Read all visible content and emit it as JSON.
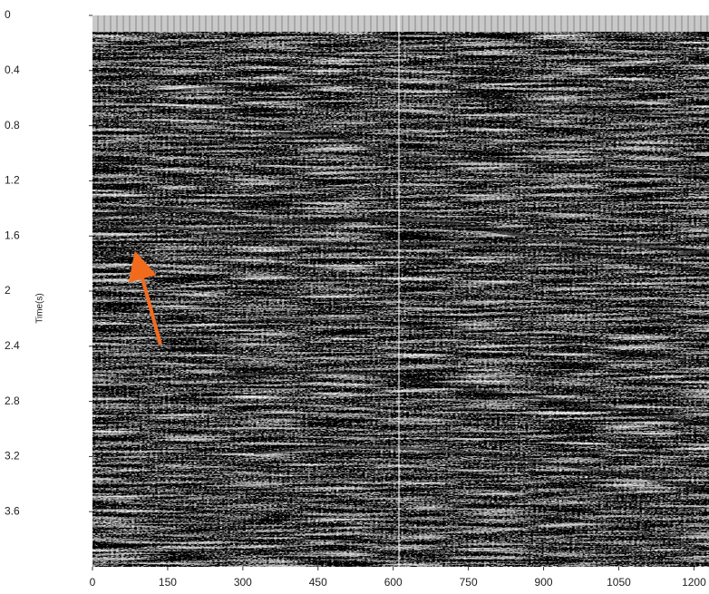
{
  "chart_data": {
    "type": "image",
    "y_label": "Time(s)",
    "xlim": [
      0,
      1230
    ],
    "xticks": [
      0,
      150,
      300,
      450,
      600,
      750,
      900,
      1050,
      1200
    ],
    "ylim": [
      0,
      4
    ],
    "yticks": [
      0,
      0.4,
      0.8,
      1.2,
      1.6,
      2,
      2.4,
      2.8,
      3.2,
      3.6
    ],
    "y_inverted": true,
    "arrow_color": "#f26b1d"
  }
}
